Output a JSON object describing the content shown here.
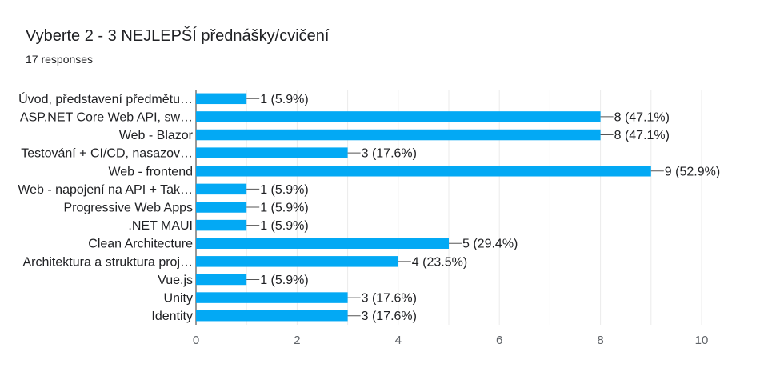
{
  "header": {
    "title": "Vyberte 2 - 3 NEJLEPŠÍ přednášky/cvičení",
    "responses": "17 responses"
  },
  "chart_data": {
    "type": "bar",
    "orientation": "horizontal",
    "categories": [
      "Úvod, představení předmětu…",
      "ASP.NET Core Web API, sw…",
      "Web - Blazor",
      "Testování + CI/CD, nasazov…",
      "Web - frontend",
      "Web - napojení na API + Tak…",
      "Progressive Web Apps",
      ".NET MAUI",
      "Clean Architecture",
      "Architektura a struktura proj…",
      "Vue.js",
      "Unity",
      "Identity"
    ],
    "values": [
      1,
      8,
      8,
      3,
      9,
      1,
      1,
      1,
      5,
      4,
      1,
      3,
      3
    ],
    "data_labels": [
      "1 (5.9%)",
      "8 (47.1%)",
      "8 (47.1%)",
      "3 (17.6%)",
      "9 (52.9%)",
      "1 (5.9%)",
      "1 (5.9%)",
      "1 (5.9%)",
      "5 (29.4%)",
      "4 (23.5%)",
      "1 (5.9%)",
      "3 (17.6%)",
      "3 (17.6%)"
    ],
    "xlim": [
      0,
      10
    ],
    "xticks": [
      "0",
      "2",
      "4",
      "6",
      "8",
      "10"
    ],
    "grid": true,
    "bar_color": "#03a9f4"
  }
}
